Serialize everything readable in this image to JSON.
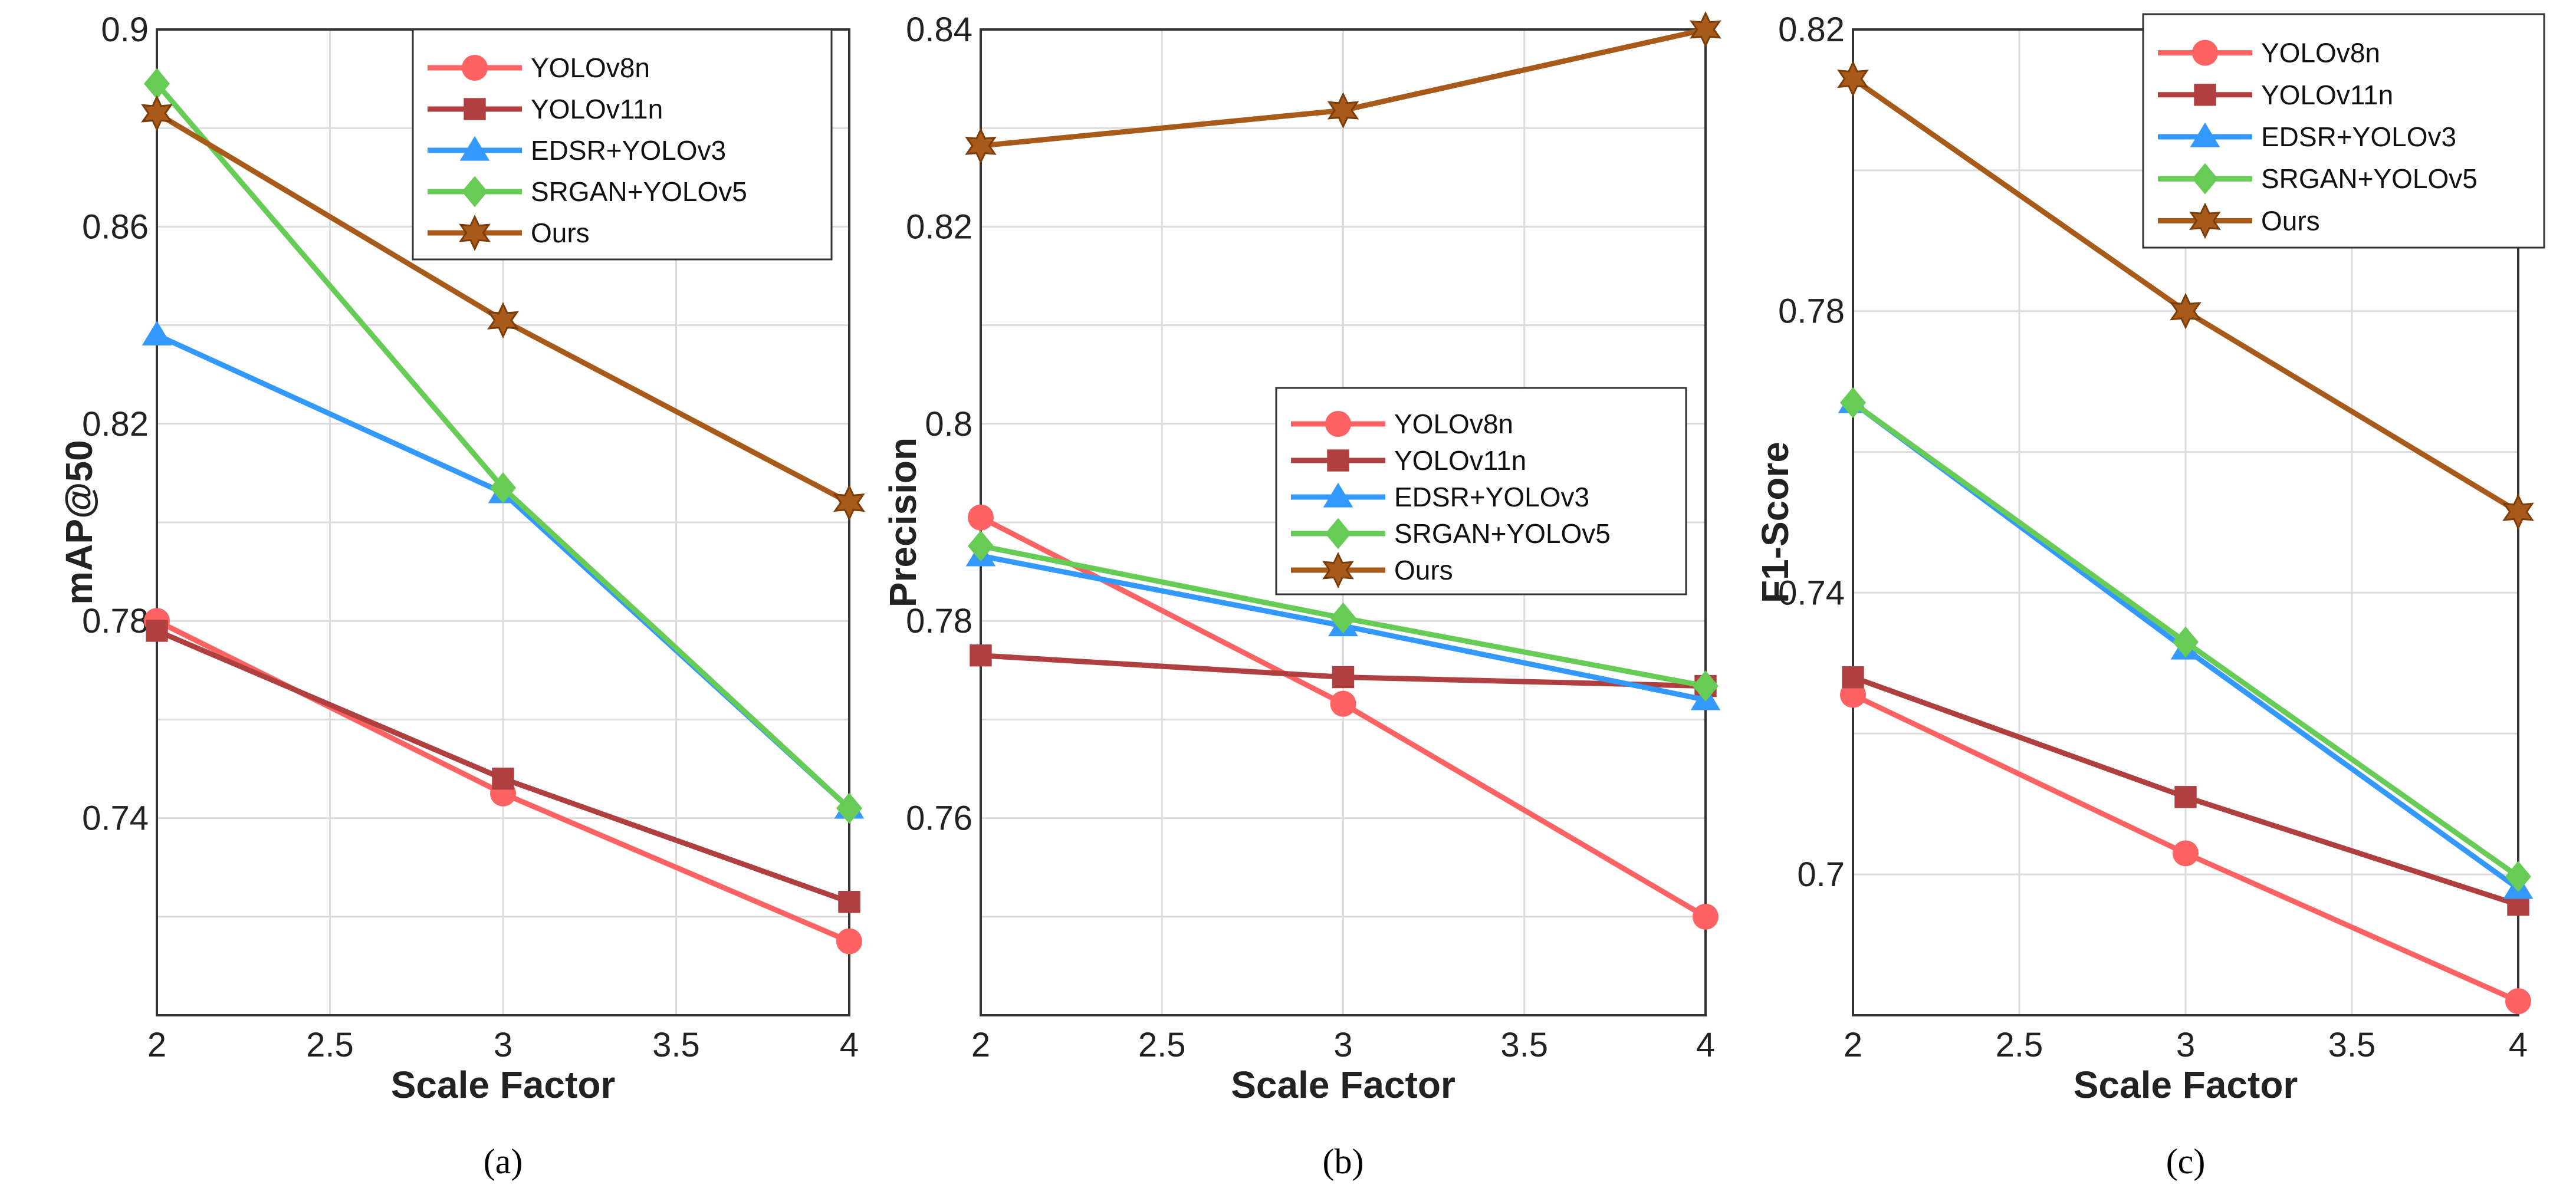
{
  "chart_data": [
    {
      "type": "line",
      "panel_label": "(a)",
      "xlabel": "Scale Factor",
      "ylabel": "mAP@50",
      "x": [
        2,
        3,
        4
      ],
      "xlim": [
        2,
        4
      ],
      "xticks": [
        "2",
        "2.5",
        "3",
        "3.5",
        "4"
      ],
      "ylim": [
        0.7,
        0.9
      ],
      "yticks": [
        "0.74",
        "0.78",
        "0.82",
        "0.86",
        "0.9"
      ],
      "ytick_values": [
        0.74,
        0.78,
        0.82,
        0.86,
        0.9
      ],
      "grid": true,
      "legend_position": "top-right",
      "series": [
        {
          "name": "YOLOv8n",
          "values": [
            0.78,
            0.745,
            0.715
          ]
        },
        {
          "name": "YOLOv11n",
          "values": [
            0.778,
            0.748,
            0.723
          ]
        },
        {
          "name": "EDSR+YOLOv3",
          "values": [
            0.838,
            0.806,
            0.742
          ]
        },
        {
          "name": "SRGAN+YOLOv5",
          "values": [
            0.889,
            0.807,
            0.742
          ]
        },
        {
          "name": "Ours",
          "values": [
            0.883,
            0.841,
            0.804
          ]
        }
      ]
    },
    {
      "type": "line",
      "panel_label": "(b)",
      "xlabel": "Scale Factor",
      "ylabel": "Precision",
      "x": [
        2,
        3,
        4
      ],
      "xlim": [
        2,
        4
      ],
      "xticks": [
        "2",
        "2.5",
        "3",
        "3.5",
        "4"
      ],
      "ylim": [
        0.74,
        0.84
      ],
      "yticks": [
        "0.76",
        "0.78",
        "0.8",
        "0.82",
        "0.84"
      ],
      "ytick_values": [
        0.76,
        0.78,
        0.8,
        0.82,
        0.84
      ],
      "grid": true,
      "legend_position": "center-right",
      "series": [
        {
          "name": "YOLOv8n",
          "values": [
            0.7905,
            0.7716,
            0.75
          ]
        },
        {
          "name": "YOLOv11n",
          "values": [
            0.7765,
            0.7743,
            0.7734
          ]
        },
        {
          "name": "EDSR+YOLOv3",
          "values": [
            0.7866,
            0.7795,
            0.772
          ]
        },
        {
          "name": "SRGAN+YOLOv5",
          "values": [
            0.7876,
            0.7803,
            0.7734
          ]
        },
        {
          "name": "Ours",
          "values": [
            0.8282,
            0.8318,
            0.84
          ]
        }
      ]
    },
    {
      "type": "line",
      "panel_label": "(c)",
      "xlabel": "Scale Factor",
      "ylabel": "F1-Score",
      "x": [
        2,
        3,
        4
      ],
      "xlim": [
        2,
        4
      ],
      "xticks": [
        "2",
        "2.5",
        "3",
        "3.5",
        "4"
      ],
      "ylim": [
        0.68,
        0.82
      ],
      "yticks": [
        "0.7",
        "0.74",
        "0.78",
        "0.82"
      ],
      "ytick_values": [
        0.7,
        0.74,
        0.78,
        0.82
      ],
      "grid": true,
      "legend_position": "top-right",
      "series": [
        {
          "name": "YOLOv8n",
          "values": [
            0.7255,
            0.703,
            0.682
          ]
        },
        {
          "name": "YOLOv11n",
          "values": [
            0.728,
            0.711,
            0.6957
          ]
        },
        {
          "name": "EDSR+YOLOv3",
          "values": [
            0.767,
            0.732,
            0.698
          ]
        },
        {
          "name": "SRGAN+YOLOv5",
          "values": [
            0.767,
            0.733,
            0.6997
          ]
        },
        {
          "name": "Ours",
          "values": [
            0.813,
            0.78,
            0.7515
          ]
        }
      ]
    }
  ],
  "styles": [
    {
      "color": "#ff6262",
      "marker": "circle"
    },
    {
      "color": "#b04040",
      "marker": "square"
    },
    {
      "color": "#3399ff",
      "marker": "triangle"
    },
    {
      "color": "#66cc55",
      "marker": "diamond"
    },
    {
      "color": "#a85a1a",
      "marker": "hexagram"
    }
  ]
}
